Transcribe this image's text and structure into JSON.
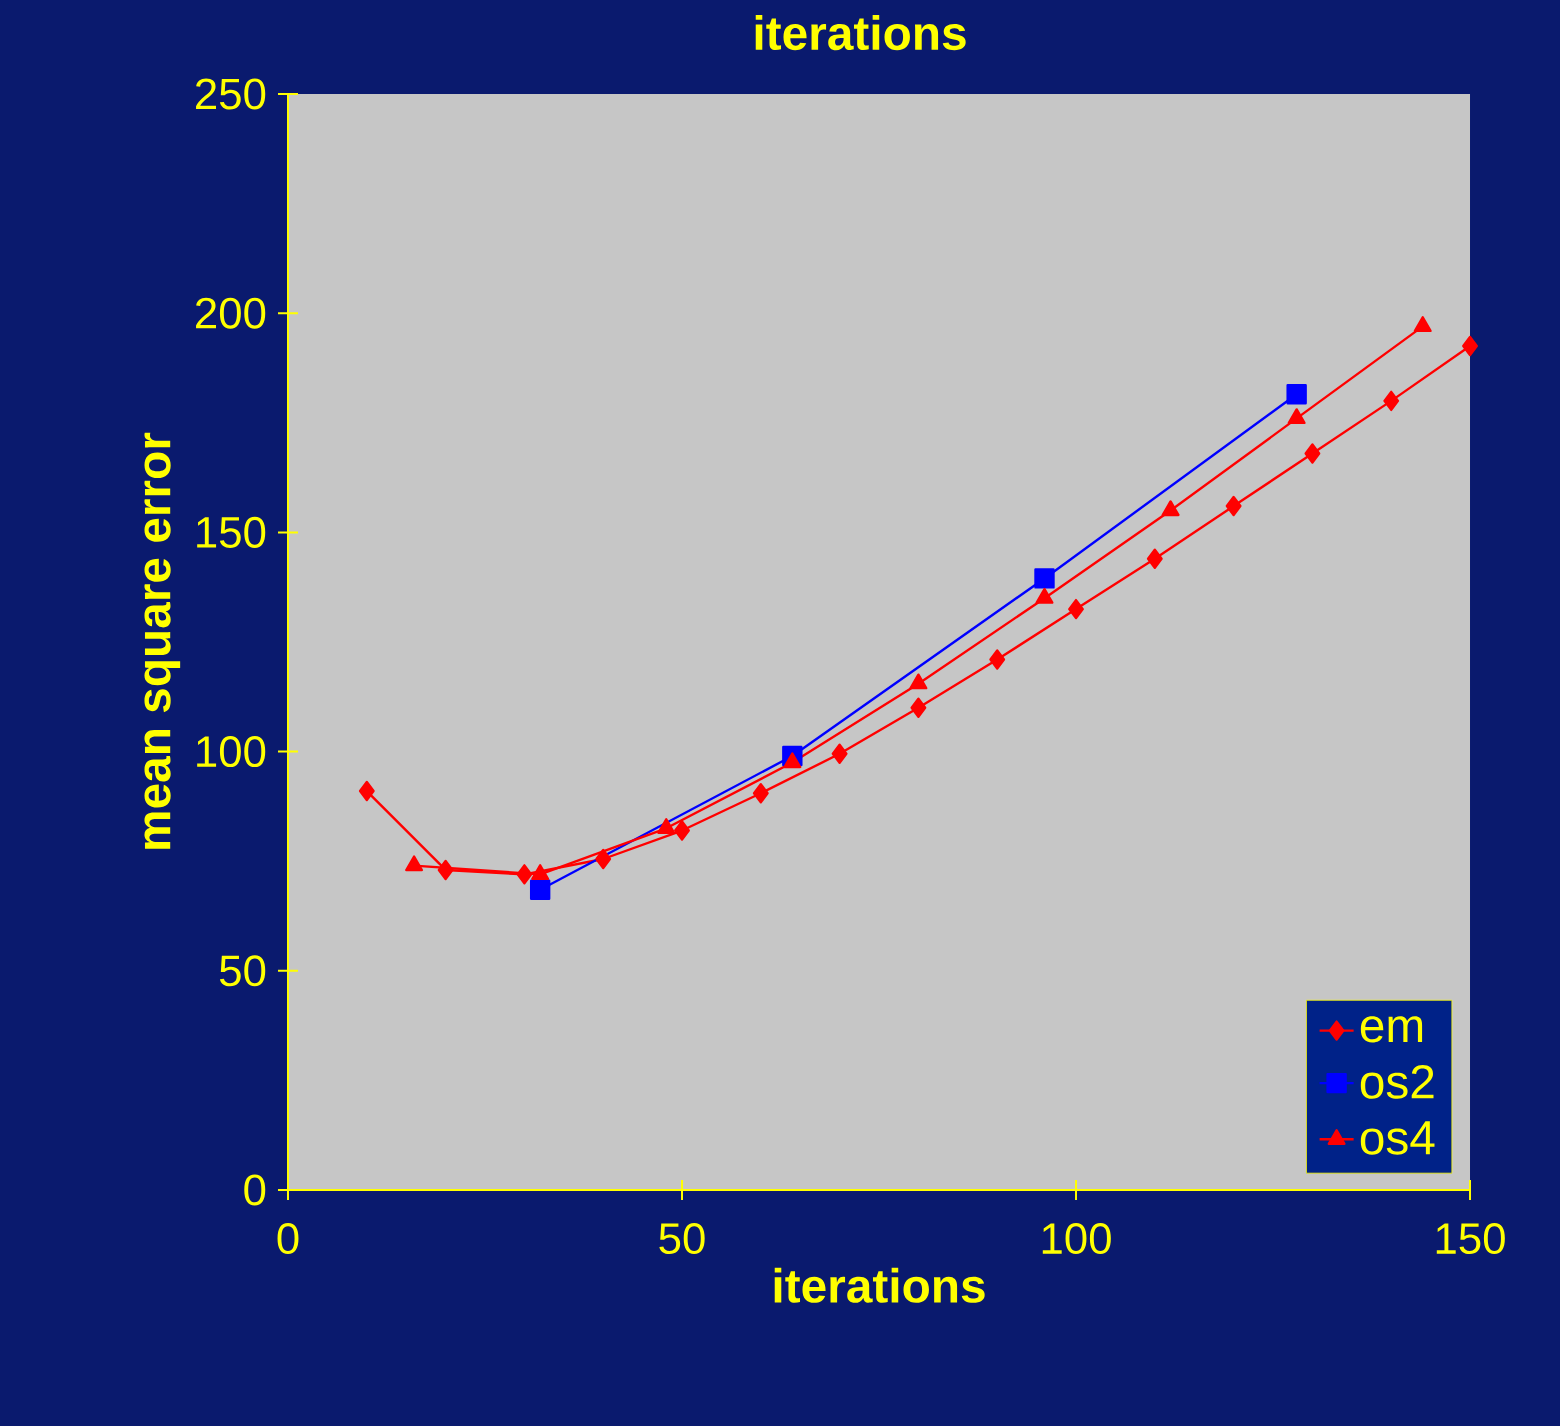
{
  "chart_data": {
    "type": "line",
    "title": "iterations",
    "xlabel": "iterations",
    "ylabel": "mean square error",
    "xlim": [
      0,
      150
    ],
    "ylim": [
      0,
      250
    ],
    "xticks": [
      0,
      50,
      100,
      150
    ],
    "yticks": [
      0,
      50,
      100,
      150,
      200,
      250
    ],
    "legend": "bottom right",
    "grid": false,
    "series": [
      {
        "name": "em",
        "color": "#ff0000",
        "marker": "diamond",
        "x": [
          10,
          20,
          30,
          40,
          50,
          60,
          70,
          80,
          90,
          100,
          110,
          120,
          130,
          140,
          150
        ],
        "values": [
          91,
          73,
          72,
          75.5,
          82,
          90.5,
          99.5,
          110,
          121,
          132.5,
          144,
          156,
          168,
          180,
          192.5
        ]
      },
      {
        "name": "os2",
        "color": "#0000ff",
        "marker": "square",
        "x": [
          32,
          64,
          96,
          128
        ],
        "values": [
          68.5,
          99,
          139.5,
          181.5
        ]
      },
      {
        "name": "os4",
        "color": "#ff0000",
        "marker": "triangle",
        "x": [
          16,
          32,
          48,
          64,
          80,
          96,
          112,
          128,
          144
        ],
        "values": [
          74,
          72,
          82.5,
          97.5,
          115.5,
          135,
          155,
          176,
          197
        ]
      }
    ]
  }
}
